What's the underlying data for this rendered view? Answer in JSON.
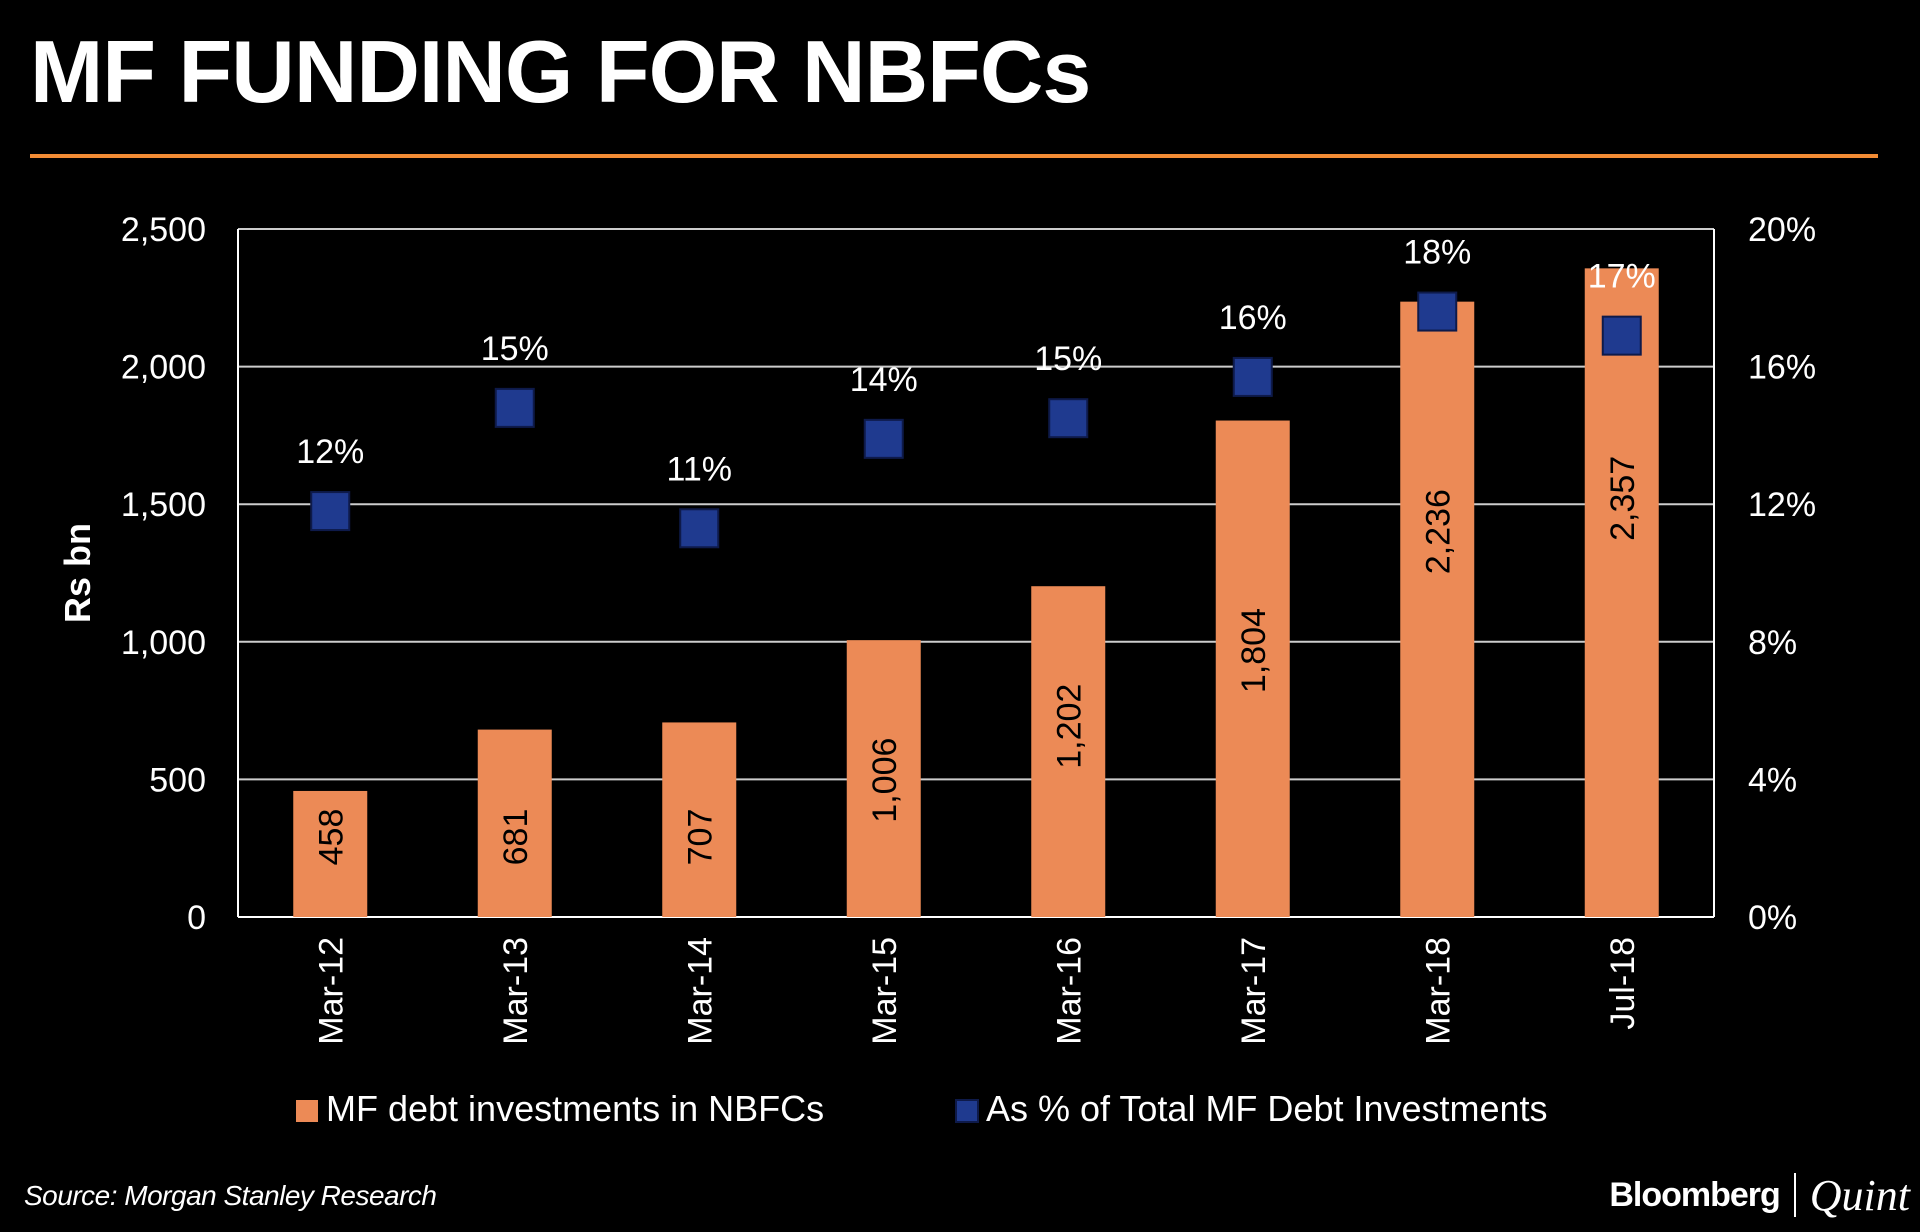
{
  "header": {
    "title": "MF FUNDING FOR NBFCs"
  },
  "chart_data": {
    "type": "bar",
    "categories": [
      "Mar-12",
      "Mar-13",
      "Mar-14",
      "Mar-15",
      "Mar-16",
      "Mar-17",
      "Mar-18",
      "Jul-18"
    ],
    "series": [
      {
        "name": "MF debt investments in NBFCs",
        "type": "bar",
        "axis": "left",
        "values": [
          458,
          681,
          707,
          1006,
          1202,
          1804,
          2236,
          2357
        ],
        "labels": [
          "458",
          "681",
          "707",
          "1,006",
          "1,202",
          "1,804",
          "2,236",
          "2,357"
        ]
      },
      {
        "name": "As % of Total MF Debt Investments",
        "type": "scatter",
        "axis": "right",
        "values": [
          11.8,
          14.8,
          11.3,
          13.9,
          14.5,
          15.7,
          17.6,
          16.9
        ],
        "labels": [
          "12%",
          "15%",
          "11%",
          "14%",
          "15%",
          "16%",
          "18%",
          "17%"
        ]
      }
    ],
    "ylabel": "Rs bn",
    "ylim": [
      0,
      2500
    ],
    "yticks": [
      0,
      500,
      1000,
      1500,
      2000,
      2500
    ],
    "ytick_labels": [
      "0",
      "500",
      "1,000",
      "1,500",
      "2,000",
      "2,500"
    ],
    "y2lim": [
      0,
      20
    ],
    "y2ticks": [
      0,
      4,
      8,
      12,
      16,
      20
    ],
    "y2tick_labels": [
      "0%",
      "4%",
      "8%",
      "12%",
      "16%",
      "20%"
    ],
    "grid": true,
    "legend_position": "bottom",
    "colors": {
      "bar": "#ec8a56",
      "marker": "#1f3a8f",
      "marker_edge": "#0e1a4a",
      "grid": "#ffffff",
      "text": "#ffffff"
    }
  },
  "footer": {
    "source": "Source: Morgan Stanley Research",
    "logo_left": "Bloomberg",
    "logo_right": "Quint"
  }
}
